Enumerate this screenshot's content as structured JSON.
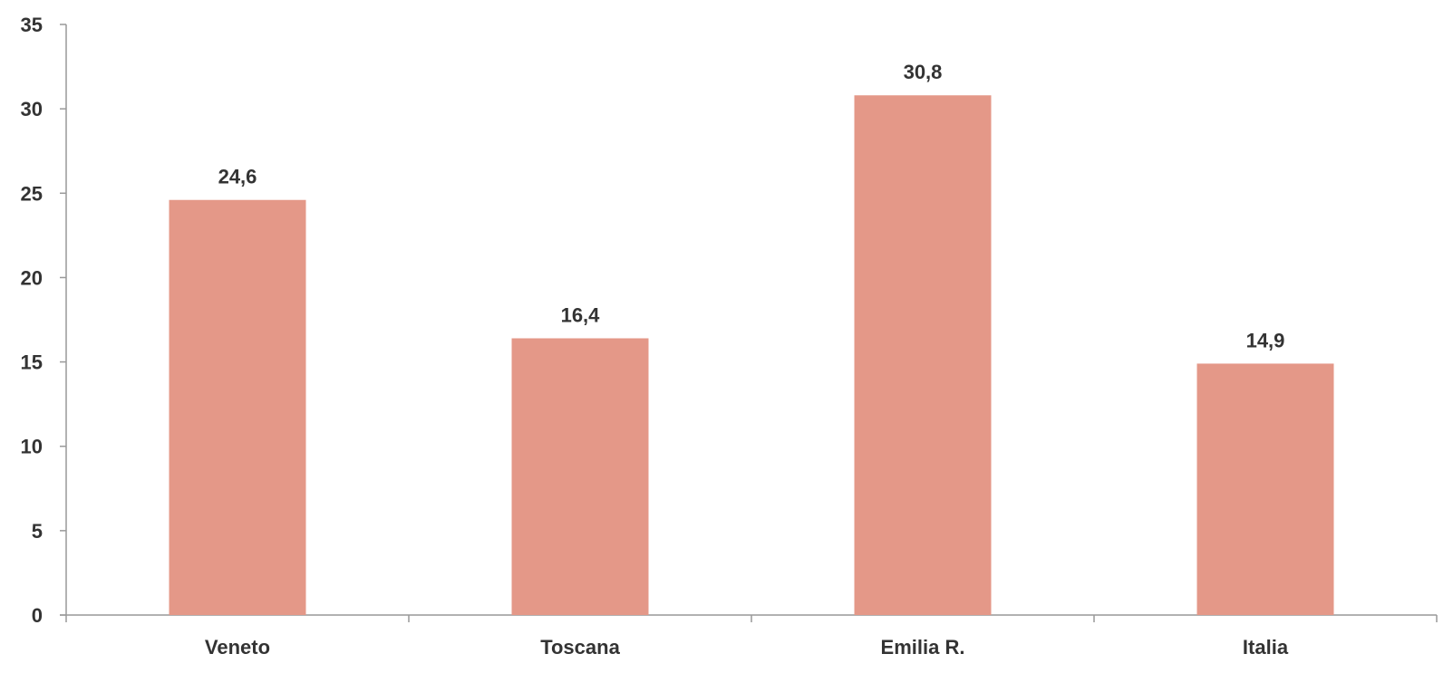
{
  "chart_data": {
    "type": "bar",
    "categories": [
      "Veneto",
      "Toscana",
      "Emilia R.",
      "Italia"
    ],
    "values": [
      24.6,
      16.4,
      30.8,
      14.9
    ],
    "data_labels": [
      "24,6",
      "16,4",
      "30,8",
      "14,9"
    ],
    "ylim": [
      0,
      35
    ],
    "yticks": [
      0,
      5,
      10,
      15,
      20,
      25,
      30,
      35
    ],
    "ytick_labels": [
      "0",
      "5",
      "10",
      "15",
      "20",
      "25",
      "30",
      "35"
    ],
    "grid": false,
    "legend": "none",
    "colors": {
      "bar": "#e49888",
      "axis": "#999999",
      "text": "#333333"
    }
  }
}
